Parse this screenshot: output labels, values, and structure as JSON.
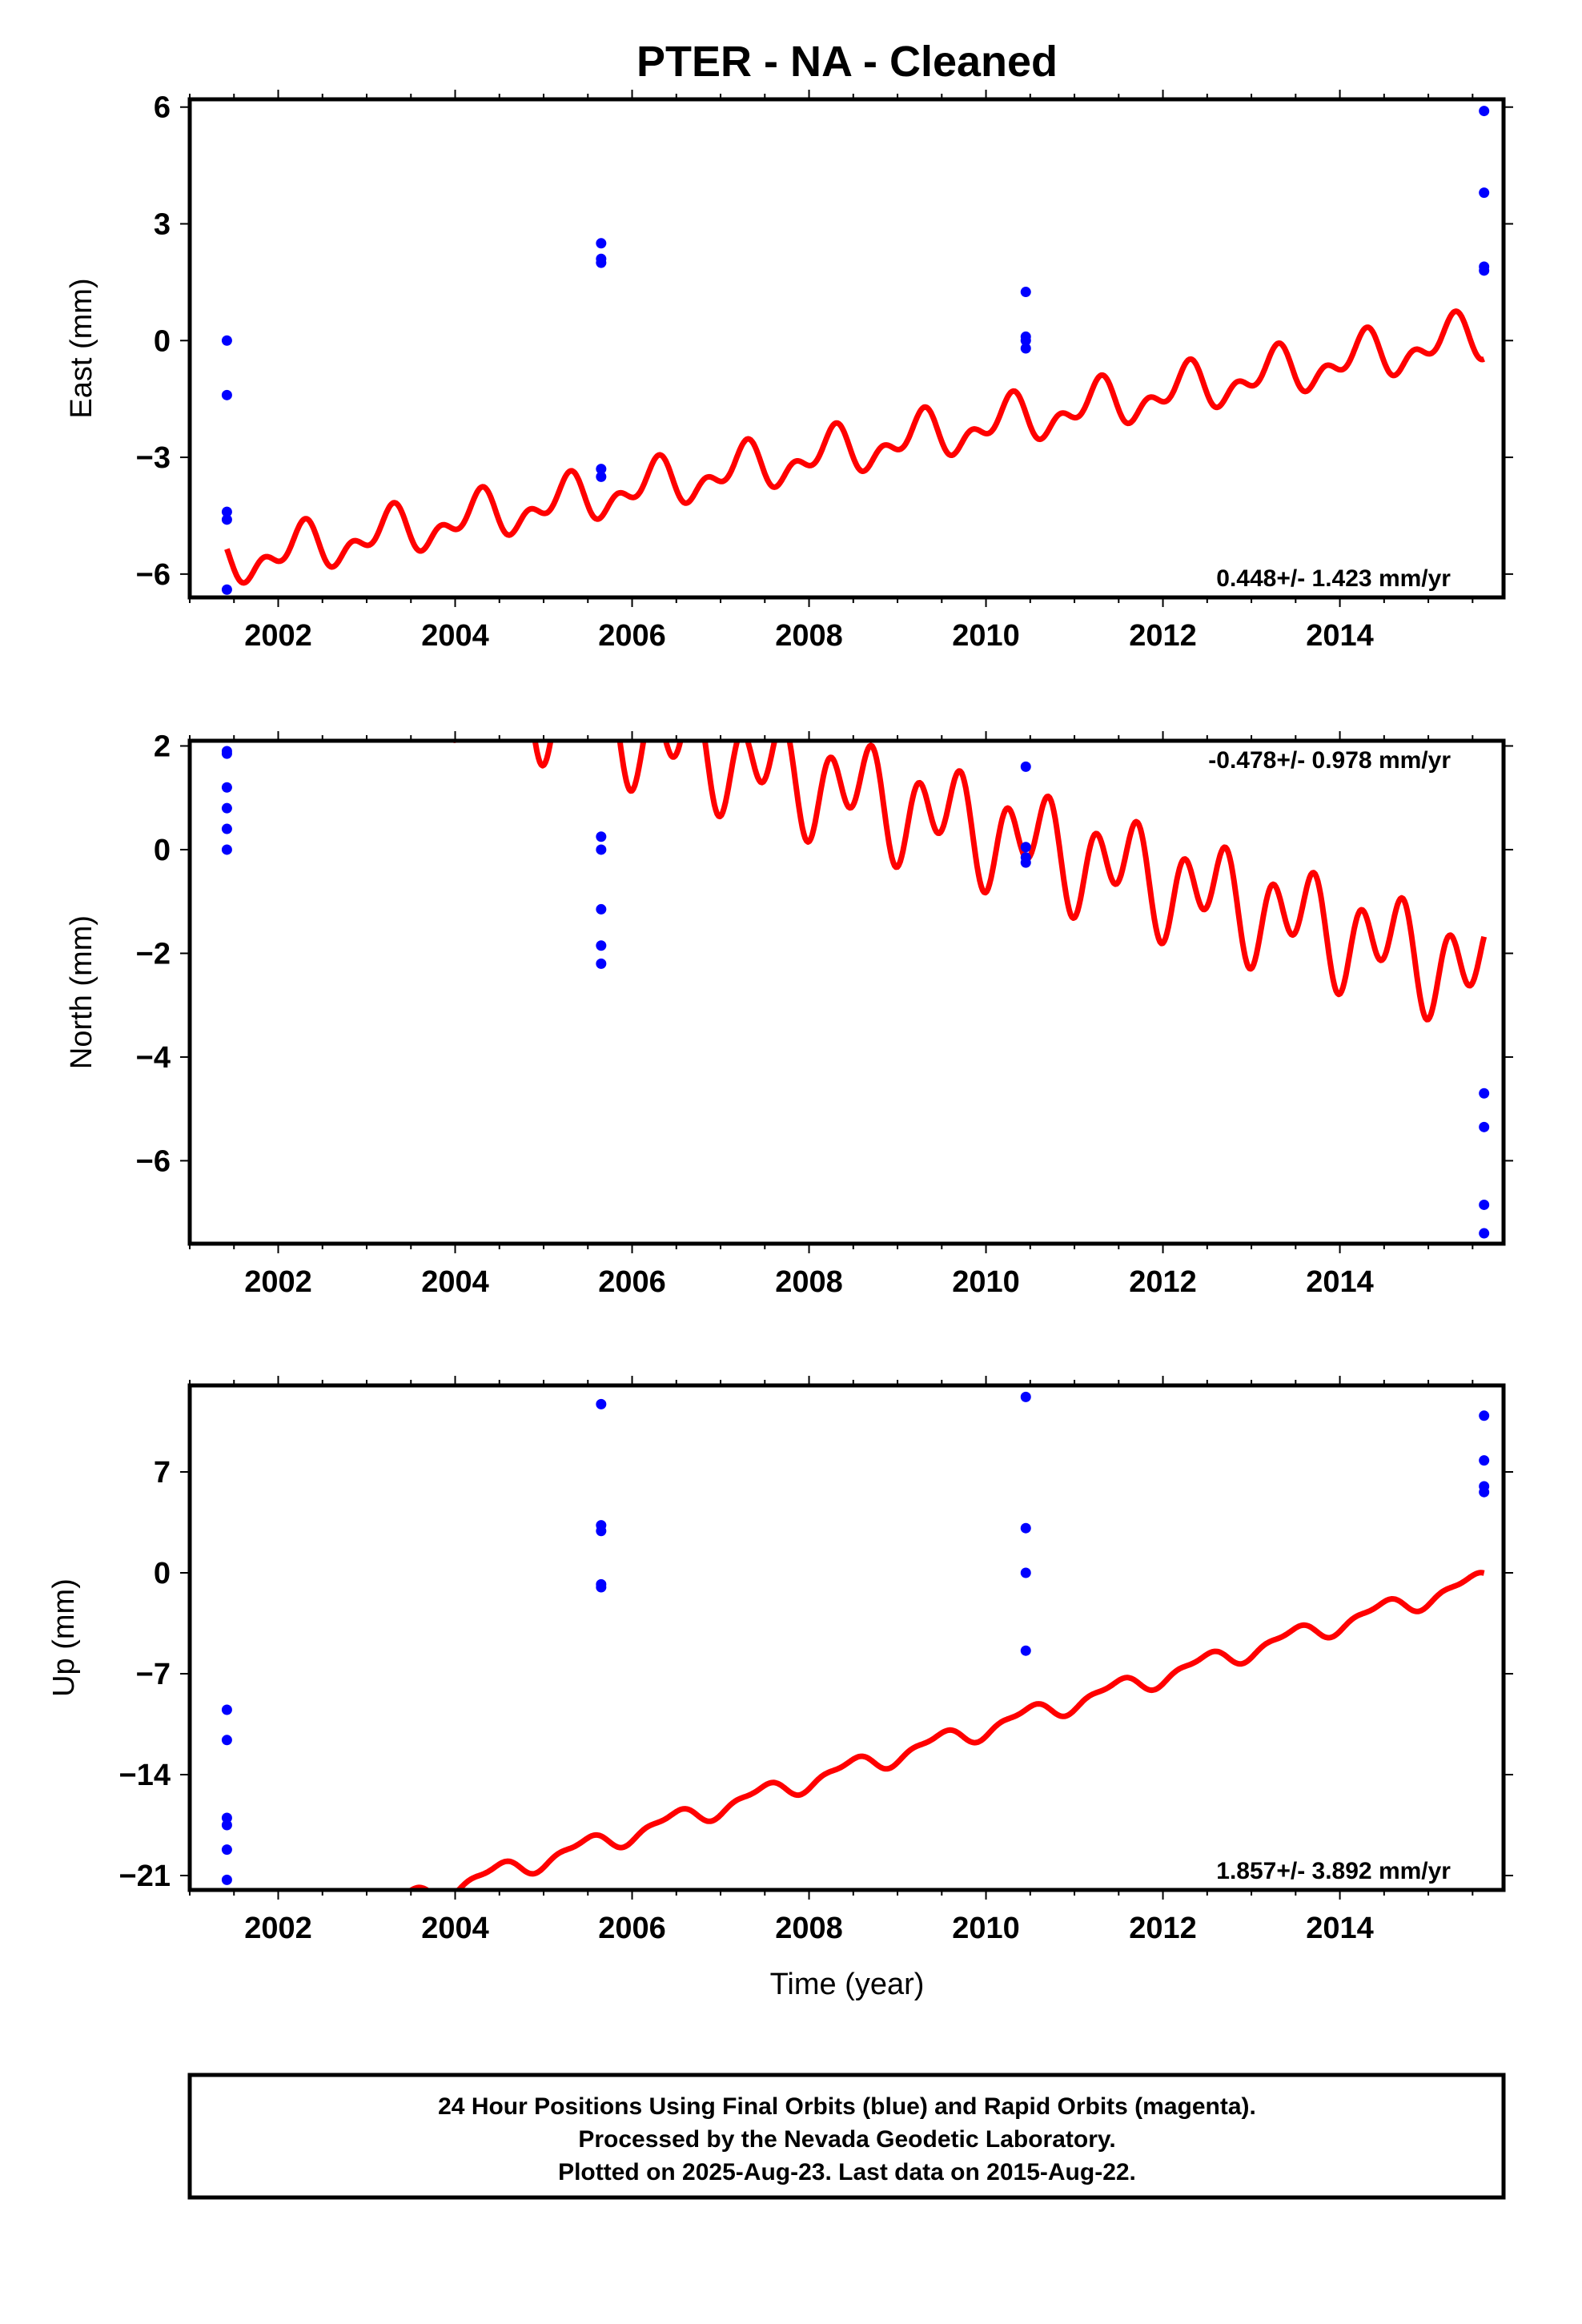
{
  "title": "PTER  - NA - Cleaned",
  "xlabel": "Time (year)",
  "footer": {
    "line1": "24 Hour Positions Using Final Orbits (blue) and Rapid Orbits (magenta).",
    "line2": "Processed by the Nevada Geodetic Laboratory.",
    "line3": "Plotted on 2025-Aug-23. Last data on 2015-Aug-22."
  },
  "colors": {
    "points": "#0000ff",
    "model": "#ff0000",
    "axis": "#000000"
  },
  "chart_data": [
    {
      "type": "scatter",
      "ylabel": "East (mm)",
      "rate": "0.448+/- 1.423 mm/yr",
      "rate_position": "bottom-right",
      "xlim": [
        2001.0,
        2015.85
      ],
      "ylim": [
        -6.6,
        6.2
      ],
      "xticks": [
        "2002",
        "2004",
        "2006",
        "2008",
        "2010",
        "2012",
        "2014"
      ],
      "xtick_values": [
        2002,
        2004,
        2006,
        2008,
        2010,
        2012,
        2014
      ],
      "yticks": [
        "−6",
        "−3",
        "0",
        "3",
        "6"
      ],
      "ytick_values": [
        -6,
        -3,
        0,
        3,
        6
      ],
      "points": {
        "x": [
          2001.42,
          2001.42,
          2001.42,
          2001.42,
          2001.42,
          2005.65,
          2005.65,
          2005.65,
          2005.65,
          2005.65,
          2010.45,
          2010.45,
          2010.45,
          2010.45,
          2015.63,
          2015.63,
          2015.63,
          2015.63
        ],
        "y": [
          0.0,
          -1.4,
          -4.4,
          -4.6,
          -6.4,
          2.5,
          2.1,
          2.0,
          -3.3,
          -3.5,
          1.25,
          0.1,
          0.0,
          -0.2,
          5.9,
          3.8,
          1.9,
          1.8
        ]
      },
      "model": {
        "start": 2001.42,
        "end": 2015.63,
        "offset": -2.8,
        "rate": 0.41,
        "annual_amp": 0.45,
        "annual_phase": 0.0,
        "semi_amp": 0.35,
        "semi_phase": 0.2
      }
    },
    {
      "type": "scatter",
      "ylabel": "North (mm)",
      "rate": "-0.478+/- 0.978 mm/yr",
      "rate_position": "top-right",
      "xlim": [
        2001.0,
        2015.85
      ],
      "ylim": [
        -7.6,
        2.1
      ],
      "xticks": [
        "2002",
        "2004",
        "2006",
        "2008",
        "2010",
        "2012",
        "2014"
      ],
      "xtick_values": [
        2002,
        2004,
        2006,
        2008,
        2010,
        2012,
        2014
      ],
      "yticks": [
        "−6",
        "−4",
        "−2",
        "0",
        "2"
      ],
      "ytick_values": [
        -6,
        -4,
        -2,
        0,
        2
      ],
      "points": {
        "x": [
          2001.42,
          2001.42,
          2001.42,
          2001.42,
          2001.42,
          2001.42,
          2005.65,
          2005.65,
          2005.65,
          2005.65,
          2005.65,
          2010.45,
          2010.45,
          2010.45,
          2010.45,
          2015.63,
          2015.63,
          2015.63,
          2015.63
        ],
        "y": [
          1.9,
          1.85,
          1.2,
          0.8,
          0.4,
          0.0,
          0.25,
          0.0,
          -1.15,
          -1.85,
          -2.2,
          1.6,
          0.05,
          -0.15,
          -0.25,
          -4.7,
          -5.35,
          -6.85,
          -7.4
        ]
      },
      "model": {
        "start": 2001.42,
        "end": 2015.63,
        "offset": 1.1,
        "rate": -0.49,
        "annual_amp": 0.5,
        "annual_phase": 0.3,
        "semi_amp": 0.75,
        "semi_phase": 0.1
      }
    },
    {
      "type": "scatter",
      "ylabel": "Up (mm)",
      "rate": "1.857+/- 3.892 mm/yr",
      "rate_position": "bottom-right",
      "xlim": [
        2001.0,
        2015.85
      ],
      "ylim": [
        -22.0,
        13.0
      ],
      "xticks": [
        "2002",
        "2004",
        "2006",
        "2008",
        "2010",
        "2012",
        "2014"
      ],
      "xtick_values": [
        2002,
        2004,
        2006,
        2008,
        2010,
        2012,
        2014
      ],
      "yticks": [
        "−21",
        "−14",
        "−7",
        "0",
        "7"
      ],
      "ytick_values": [
        -21,
        -14,
        -7,
        0,
        7
      ],
      "points": {
        "x": [
          2001.42,
          2001.42,
          2001.42,
          2001.42,
          2001.42,
          2001.42,
          2005.65,
          2005.65,
          2005.65,
          2005.65,
          2005.65,
          2010.45,
          2010.45,
          2010.45,
          2010.45,
          2015.63,
          2015.63,
          2015.63,
          2015.63
        ],
        "y": [
          -9.5,
          -11.6,
          -17.0,
          -17.5,
          -19.2,
          -21.3,
          11.7,
          3.3,
          2.9,
          -0.8,
          -1.0,
          12.2,
          3.1,
          0.0,
          -5.4,
          10.9,
          7.8,
          6.0,
          5.6
        ]
      },
      "model": {
        "start": 2001.42,
        "end": 2015.63,
        "offset": -13.5,
        "rate": 1.82,
        "annual_amp": 0.6,
        "annual_phase": 0.2,
        "semi_amp": 0.25,
        "semi_phase": 0.0
      }
    }
  ]
}
